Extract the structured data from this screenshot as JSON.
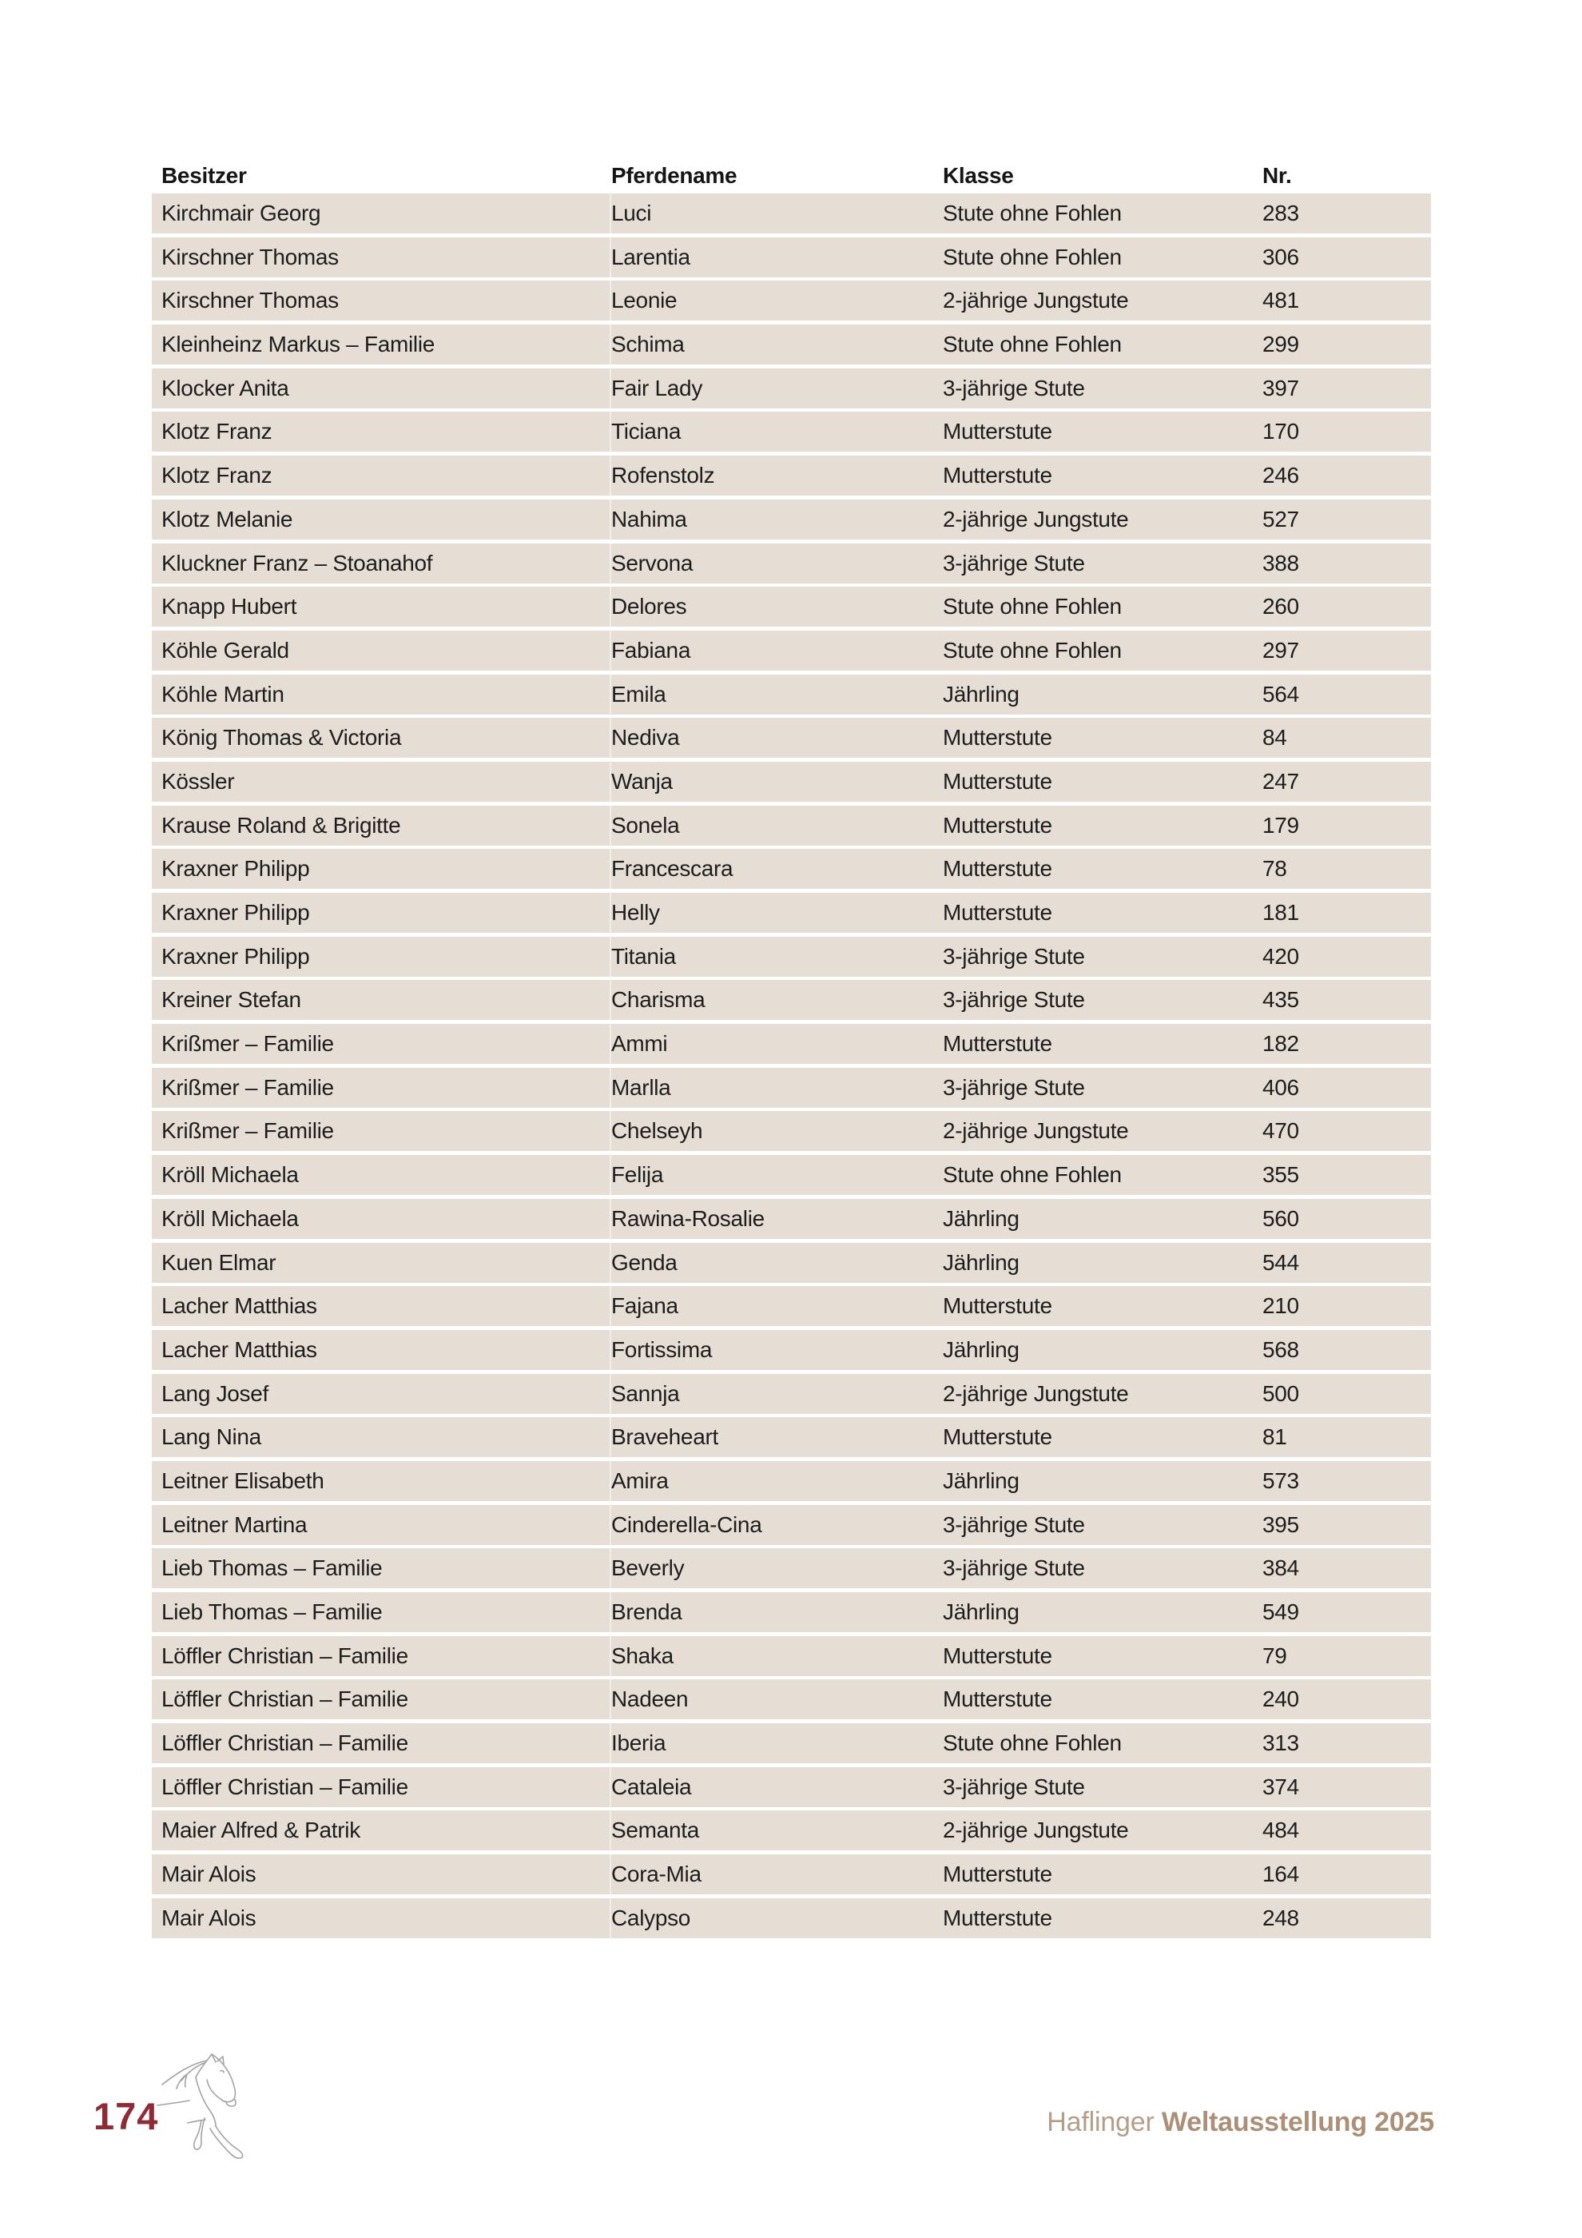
{
  "page": {
    "number": "174"
  },
  "table": {
    "headers": [
      "Besitzer",
      "Pferdename",
      "Klasse",
      "Nr."
    ],
    "rows": [
      {
        "besitzer": "Kirchmair Georg",
        "pferdename": "Luci",
        "klasse": "Stute ohne Fohlen",
        "nr": "283"
      },
      {
        "besitzer": "Kirschner Thomas",
        "pferdename": "Larentia",
        "klasse": "Stute ohne Fohlen",
        "nr": "306"
      },
      {
        "besitzer": "Kirschner Thomas",
        "pferdename": "Leonie",
        "klasse": "2-jährige Jungstute",
        "nr": "481"
      },
      {
        "besitzer": "Kleinheinz Markus – Familie",
        "pferdename": "Schima",
        "klasse": "Stute ohne Fohlen",
        "nr": "299"
      },
      {
        "besitzer": "Klocker Anita",
        "pferdename": "Fair Lady",
        "klasse": "3-jährige Stute",
        "nr": "397"
      },
      {
        "besitzer": "Klotz Franz",
        "pferdename": "Ticiana",
        "klasse": "Mutterstute",
        "nr": "170"
      },
      {
        "besitzer": "Klotz Franz",
        "pferdename": "Rofenstolz",
        "klasse": "Mutterstute",
        "nr": "246"
      },
      {
        "besitzer": "Klotz Melanie",
        "pferdename": "Nahima",
        "klasse": "2-jährige Jungstute",
        "nr": "527"
      },
      {
        "besitzer": "Kluckner Franz – Stoanahof",
        "pferdename": "Servona",
        "klasse": "3-jährige Stute",
        "nr": "388"
      },
      {
        "besitzer": "Knapp Hubert",
        "pferdename": "Delores",
        "klasse": "Stute ohne Fohlen",
        "nr": "260"
      },
      {
        "besitzer": "Köhle Gerald",
        "pferdename": "Fabiana",
        "klasse": "Stute ohne Fohlen",
        "nr": "297"
      },
      {
        "besitzer": "Köhle Martin",
        "pferdename": "Emila",
        "klasse": "Jährling",
        "nr": "564"
      },
      {
        "besitzer": "König Thomas & Victoria",
        "pferdename": "Nediva",
        "klasse": "Mutterstute",
        "nr": "84"
      },
      {
        "besitzer": "Kössler",
        "pferdename": "Wanja",
        "klasse": "Mutterstute",
        "nr": "247"
      },
      {
        "besitzer": "Krause Roland & Brigitte",
        "pferdename": "Sonela",
        "klasse": "Mutterstute",
        "nr": "179"
      },
      {
        "besitzer": "Kraxner Philipp",
        "pferdename": "Francescara",
        "klasse": "Mutterstute",
        "nr": "78"
      },
      {
        "besitzer": "Kraxner Philipp",
        "pferdename": "Helly",
        "klasse": "Mutterstute",
        "nr": "181"
      },
      {
        "besitzer": "Kraxner Philipp",
        "pferdename": "Titania",
        "klasse": "3-jährige Stute",
        "nr": "420"
      },
      {
        "besitzer": "Kreiner Stefan",
        "pferdename": "Charisma",
        "klasse": "3-jährige Stute",
        "nr": "435"
      },
      {
        "besitzer": "Krißmer – Familie",
        "pferdename": "Ammi",
        "klasse": "Mutterstute",
        "nr": "182"
      },
      {
        "besitzer": "Krißmer – Familie",
        "pferdename": "Marlla",
        "klasse": "3-jährige Stute",
        "nr": "406"
      },
      {
        "besitzer": "Krißmer – Familie",
        "pferdename": "Chelseyh",
        "klasse": "2-jährige Jungstute",
        "nr": "470"
      },
      {
        "besitzer": "Kröll Michaela",
        "pferdename": "Felija",
        "klasse": "Stute ohne Fohlen",
        "nr": "355"
      },
      {
        "besitzer": "Kröll Michaela",
        "pferdename": "Rawina-Rosalie",
        "klasse": "Jährling",
        "nr": "560"
      },
      {
        "besitzer": "Kuen Elmar",
        "pferdename": "Genda",
        "klasse": "Jährling",
        "nr": "544"
      },
      {
        "besitzer": "Lacher Matthias",
        "pferdename": "Fajana",
        "klasse": "Mutterstute",
        "nr": "210"
      },
      {
        "besitzer": "Lacher Matthias",
        "pferdename": "Fortissima",
        "klasse": "Jährling",
        "nr": "568"
      },
      {
        "besitzer": "Lang Josef",
        "pferdename": "Sannja",
        "klasse": "2-jährige Jungstute",
        "nr": "500"
      },
      {
        "besitzer": "Lang Nina",
        "pferdename": "Braveheart",
        "klasse": "Mutterstute",
        "nr": "81"
      },
      {
        "besitzer": "Leitner Elisabeth",
        "pferdename": "Amira",
        "klasse": "Jährling",
        "nr": "573"
      },
      {
        "besitzer": "Leitner Martina",
        "pferdename": "Cinderella-Cina",
        "klasse": "3-jährige Stute",
        "nr": "395"
      },
      {
        "besitzer": "Lieb Thomas – Familie",
        "pferdename": "Beverly",
        "klasse": "3-jährige Stute",
        "nr": "384"
      },
      {
        "besitzer": "Lieb Thomas – Familie",
        "pferdename": "Brenda",
        "klasse": "Jährling",
        "nr": "549"
      },
      {
        "besitzer": "Löffler Christian – Familie",
        "pferdename": "Shaka",
        "klasse": "Mutterstute",
        "nr": "79"
      },
      {
        "besitzer": "Löffler Christian – Familie",
        "pferdename": "Nadeen",
        "klasse": "Mutterstute",
        "nr": "240"
      },
      {
        "besitzer": "Löffler Christian – Familie",
        "pferdename": "Iberia",
        "klasse": "Stute ohne Fohlen",
        "nr": "313"
      },
      {
        "besitzer": "Löffler Christian – Familie",
        "pferdename": "Cataleia",
        "klasse": "3-jährige Stute",
        "nr": "374"
      },
      {
        "besitzer": "Maier Alfred & Patrik",
        "pferdename": "Semanta",
        "klasse": "2-jährige Jungstute",
        "nr": "484"
      },
      {
        "besitzer": "Mair Alois",
        "pferdename": "Cora-Mia",
        "klasse": "Mutterstute",
        "nr": "164"
      },
      {
        "besitzer": "Mair Alois",
        "pferdename": "Calypso",
        "klasse": "Mutterstute",
        "nr": "248"
      }
    ]
  },
  "footer": {
    "brand_light": "Haflinger",
    "brand_bold": "Weltausstellung 2025",
    "horse_icon": "horse-line-art"
  },
  "colors": {
    "row_bg": "#e6ded5",
    "text": "#1d1d1d",
    "page_number": "#8f2b35",
    "footer_light": "#b49e88",
    "footer_bold": "#ab9077",
    "horse_line": "#a3a3a3"
  }
}
